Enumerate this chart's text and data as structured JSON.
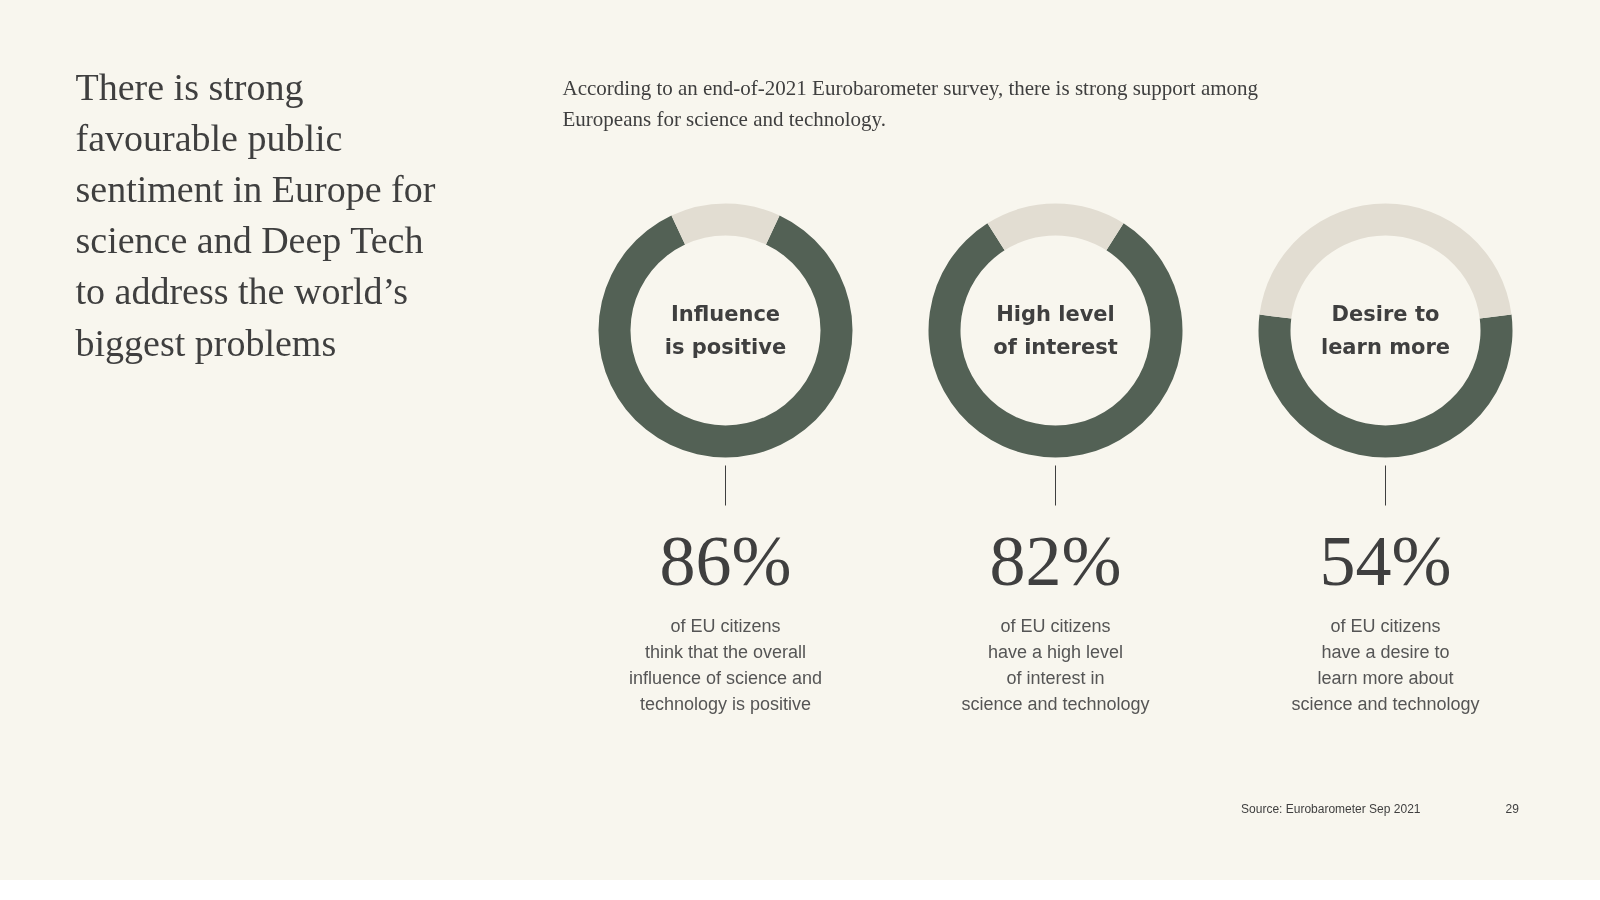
{
  "chart_data": [
    {
      "type": "other",
      "title": "There is strong\nfavourable public\nsentiment in Europe for\nscience and Deep Tech\nto address the world’s\nbiggest problems",
      "subtitle": "According to an end-of-2021 Eurobarometer survey, there is strong support among\nEuropeans for science and technology.",
      "annotations": [
        "Source: Eurobarometer Sep 2021",
        "29"
      ]
    },
    {
      "type": "donut",
      "title": "Influence\nis positive",
      "categories": [
        null,
        null
      ],
      "values": [
        86,
        14
      ],
      "colors": [
        "#536155",
        "#e2ddd2"
      ],
      "value_labels": [
        "86%",
        null
      ],
      "annotations": [
        "of EU citizens\nthink that the overall\ninfluence of science and\ntechnology is positive"
      ]
    },
    {
      "type": "donut",
      "title": "High level\nof interest",
      "categories": [
        null,
        null
      ],
      "values": [
        82,
        18
      ],
      "colors": [
        "#536155",
        "#e2ddd2"
      ],
      "value_labels": [
        "82%",
        null
      ],
      "annotations": [
        "of EU citizens\nhave a high level\nof interest in\nscience and technology"
      ]
    },
    {
      "type": "donut",
      "title": "Desire to\nlearn more",
      "categories": [
        null,
        null
      ],
      "values": [
        54,
        46
      ],
      "colors": [
        "#536155",
        "#e2ddd2"
      ],
      "value_labels": [
        "54%",
        null
      ],
      "annotations": [
        "of EU citizens\nhave a desire to\nlearn more about\nscience and technology"
      ]
    }
  ]
}
